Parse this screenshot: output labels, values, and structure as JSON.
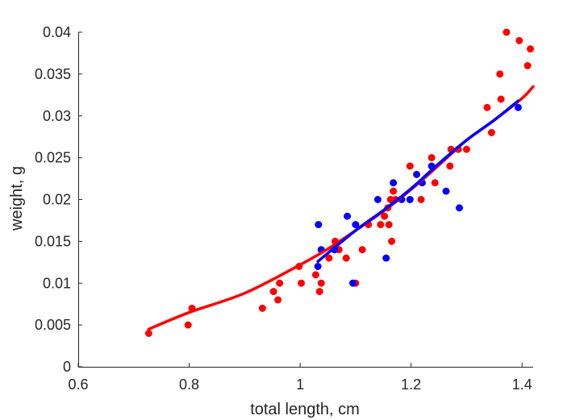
{
  "chart_data": {
    "type": "scatter",
    "title": "",
    "xlabel": "total length, cm",
    "ylabel": "weight, g",
    "xlim": [
      0.6,
      1.42
    ],
    "ylim": [
      0,
      0.04
    ],
    "xticks": [
      0.6,
      0.8,
      1,
      1.2,
      1.4
    ],
    "xtick_labels": [
      "0.6",
      "0.8",
      "1",
      "1.2",
      "1.4"
    ],
    "yticks": [
      0,
      0.005,
      0.01,
      0.015,
      0.02,
      0.025,
      0.03,
      0.035,
      0.04
    ],
    "ytick_labels": [
      "0",
      "0.005",
      "0.01",
      "0.015",
      "0.02",
      "0.025",
      "0.03",
      "0.035",
      "0.04"
    ],
    "grid": false,
    "legend": "none",
    "series": [
      {
        "color": "#ff0000",
        "kind": "points",
        "points": [
          [
            0.727,
            0.004
          ],
          [
            0.798,
            0.005
          ],
          [
            0.805,
            0.007
          ],
          [
            0.932,
            0.007
          ],
          [
            0.952,
            0.009
          ],
          [
            0.96,
            0.008
          ],
          [
            0.963,
            0.01
          ],
          [
            0.998,
            0.012
          ],
          [
            1.002,
            0.01
          ],
          [
            1.028,
            0.011
          ],
          [
            1.035,
            0.009
          ],
          [
            1.038,
            0.01
          ],
          [
            1.052,
            0.013
          ],
          [
            1.062,
            0.014
          ],
          [
            1.063,
            0.015
          ],
          [
            1.07,
            0.014
          ],
          [
            1.083,
            0.013
          ],
          [
            1.1,
            0.01
          ],
          [
            1.112,
            0.014
          ],
          [
            1.123,
            0.017
          ],
          [
            1.145,
            0.017
          ],
          [
            1.152,
            0.018
          ],
          [
            1.158,
            0.019
          ],
          [
            1.16,
            0.017
          ],
          [
            1.163,
            0.02
          ],
          [
            1.165,
            0.015
          ],
          [
            1.168,
            0.021
          ],
          [
            1.172,
            0.02
          ],
          [
            1.198,
            0.024
          ],
          [
            1.218,
            0.02
          ],
          [
            1.237,
            0.025
          ],
          [
            1.243,
            0.022
          ],
          [
            1.27,
            0.024
          ],
          [
            1.272,
            0.026
          ],
          [
            1.285,
            0.026
          ],
          [
            1.3,
            0.026
          ],
          [
            1.337,
            0.031
          ],
          [
            1.345,
            0.028
          ],
          [
            1.36,
            0.035
          ],
          [
            1.362,
            0.032
          ],
          [
            1.372,
            0.04
          ],
          [
            1.395,
            0.039
          ],
          [
            1.41,
            0.036
          ],
          [
            1.415,
            0.038
          ]
        ]
      },
      {
        "color": "#0000ff",
        "kind": "points",
        "points": [
          [
            1.032,
            0.012
          ],
          [
            1.033,
            0.017
          ],
          [
            1.038,
            0.014
          ],
          [
            1.062,
            0.014
          ],
          [
            1.085,
            0.018
          ],
          [
            1.095,
            0.01
          ],
          [
            1.1,
            0.017
          ],
          [
            1.14,
            0.02
          ],
          [
            1.155,
            0.013
          ],
          [
            1.168,
            0.022
          ],
          [
            1.183,
            0.02
          ],
          [
            1.198,
            0.02
          ],
          [
            1.21,
            0.023
          ],
          [
            1.22,
            0.022
          ],
          [
            1.237,
            0.024
          ],
          [
            1.263,
            0.021
          ],
          [
            1.287,
            0.019
          ],
          [
            1.393,
            0.031
          ]
        ]
      },
      {
        "color": "#ff0000",
        "kind": "fit-curve",
        "points": [
          [
            0.727,
            0.0045
          ],
          [
            0.8,
            0.0065
          ],
          [
            0.9,
            0.0088
          ],
          [
            1.0,
            0.0122
          ],
          [
            1.05,
            0.0141
          ],
          [
            1.1,
            0.0163
          ],
          [
            1.15,
            0.0186
          ],
          [
            1.2,
            0.0212
          ],
          [
            1.25,
            0.0241
          ],
          [
            1.3,
            0.0271
          ],
          [
            1.35,
            0.0295
          ],
          [
            1.4,
            0.0321
          ],
          [
            1.42,
            0.0335
          ]
        ]
      },
      {
        "color": "#0000ff",
        "kind": "fit-curve",
        "points": [
          [
            1.032,
            0.0126
          ],
          [
            1.1,
            0.0163
          ],
          [
            1.15,
            0.0187
          ],
          [
            1.2,
            0.0213
          ],
          [
            1.25,
            0.0243
          ],
          [
            1.3,
            0.0271
          ],
          [
            1.35,
            0.0295
          ],
          [
            1.393,
            0.0318
          ]
        ]
      }
    ]
  }
}
